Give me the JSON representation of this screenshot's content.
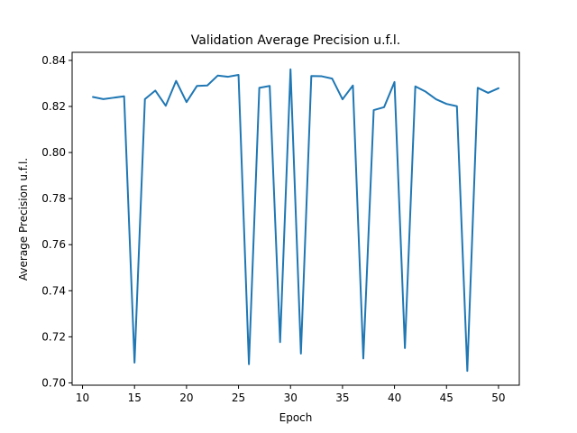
{
  "chart_data": {
    "type": "line",
    "title": "Validation Average Precision u.f.l.",
    "xlabel": "Epoch",
    "ylabel": "Average Precision u.f.l.",
    "xlim": [
      9,
      52
    ],
    "ylim": [
      0.699,
      0.8435
    ],
    "xticks": [
      10,
      15,
      20,
      25,
      30,
      35,
      40,
      45,
      50
    ],
    "yticks": [
      0.7,
      0.72,
      0.74,
      0.76,
      0.78,
      0.8,
      0.82,
      0.84
    ],
    "ytick_labels": [
      "0.70",
      "0.72",
      "0.74",
      "0.76",
      "0.78",
      "0.80",
      "0.82",
      "0.84"
    ],
    "grid": false,
    "line_color": "#1f77b4",
    "series": [
      {
        "x": [
          11,
          12,
          13,
          14,
          15,
          16,
          17,
          18,
          19,
          20,
          21,
          22,
          23,
          24,
          25,
          26,
          27,
          28,
          29,
          30,
          31,
          32,
          33,
          34,
          35,
          36,
          37,
          38,
          39,
          40,
          41,
          42,
          43,
          44,
          45,
          46,
          47,
          48,
          49,
          50
        ],
        "values": [
          0.8241,
          0.8232,
          0.8238,
          0.8244,
          0.7088,
          0.8232,
          0.8269,
          0.8203,
          0.8311,
          0.8219,
          0.8289,
          0.8291,
          0.8334,
          0.8329,
          0.8337,
          0.7081,
          0.8281,
          0.8289,
          0.7177,
          0.8361,
          0.7127,
          0.8332,
          0.8331,
          0.8321,
          0.8231,
          0.8291,
          0.7106,
          0.8184,
          0.8197,
          0.8306,
          0.7151,
          0.8287,
          0.8264,
          0.8231,
          0.8211,
          0.8201,
          0.7052,
          0.8281,
          0.8259,
          0.8279
        ]
      }
    ]
  }
}
